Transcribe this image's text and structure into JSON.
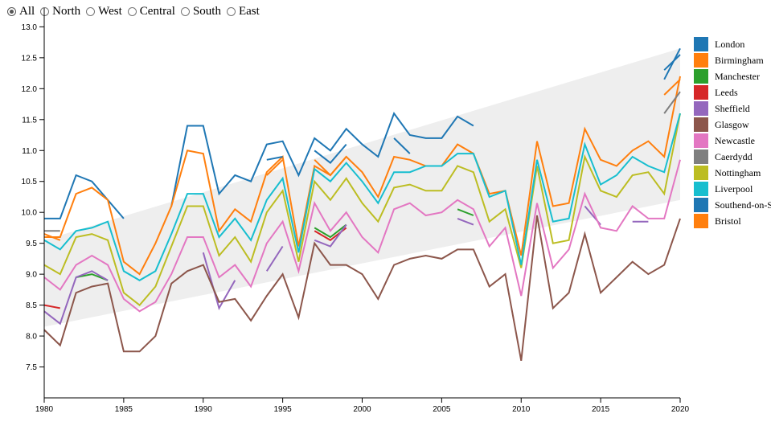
{
  "filters": {
    "options": [
      "All",
      "North",
      "West",
      "Central",
      "South",
      "East"
    ],
    "selected": "All"
  },
  "chart_data": {
    "type": "line",
    "title": "",
    "xlabel": "",
    "ylabel": "",
    "xlim": [
      1980,
      2020
    ],
    "ylim": [
      7,
      13.2
    ],
    "x_ticks": [
      1980,
      1985,
      1990,
      1995,
      2000,
      2005,
      2010,
      2015,
      2020
    ],
    "y_ticks": [
      7.5,
      8.0,
      8.5,
      9.0,
      9.5,
      10.0,
      10.5,
      11.0,
      11.5,
      12.0,
      12.5,
      13.0
    ],
    "y_tick_labels": [
      "7.5",
      "8.0",
      "8.5",
      "9.0",
      "9.5",
      "10.0",
      "10.5",
      "11.0",
      "11.5",
      "12.0",
      "12.5",
      "13.0"
    ],
    "legend_position": "right",
    "band": {
      "upper": [
        [
          1980,
          9.55
        ],
        [
          2020,
          12.65
        ]
      ],
      "lower": [
        [
          1980,
          8.15
        ],
        [
          2020,
          10.2
        ]
      ],
      "color": "#eeeeee"
    },
    "x": [
      1980,
      1981,
      1982,
      1983,
      1984,
      1985,
      1986,
      1987,
      1988,
      1989,
      1990,
      1991,
      1992,
      1993,
      1994,
      1995,
      1996,
      1997,
      1998,
      1999,
      2000,
      2001,
      2002,
      2003,
      2004,
      2005,
      2006,
      2007,
      2008,
      2009,
      2010,
      2011,
      2012,
      2013,
      2014,
      2015,
      2016,
      2017,
      2018,
      2019,
      2020
    ],
    "series": [
      {
        "name": "London",
        "color": "#1f77b4",
        "values": [
          9.9,
          9.9,
          10.6,
          10.5,
          10.2,
          9.9,
          null,
          null,
          10.1,
          11.4,
          11.4,
          10.3,
          10.6,
          10.5,
          11.1,
          11.15,
          10.6,
          11.2,
          11.0,
          11.35,
          11.1,
          10.9,
          11.6,
          11.25,
          11.2,
          11.2,
          11.55,
          11.4,
          null,
          null,
          null,
          null,
          null,
          null,
          11.95,
          null,
          null,
          null,
          null,
          12.15,
          12.65
        ]
      },
      {
        "name": "Birmingham",
        "color": "#ff7f0e",
        "values": [
          9.6,
          9.6,
          10.3,
          10.4,
          10.2,
          9.2,
          9.0,
          9.5,
          10.1,
          11.0,
          10.95,
          9.7,
          10.05,
          9.85,
          10.65,
          10.9,
          9.45,
          10.75,
          10.6,
          10.9,
          10.65,
          10.25,
          10.9,
          10.85,
          10.75,
          10.75,
          11.1,
          10.95,
          10.3,
          10.35,
          9.3,
          11.15,
          10.1,
          10.15,
          11.35,
          10.85,
          10.75,
          11.0,
          11.15,
          10.9,
          12.2
        ]
      },
      {
        "name": "Manchester",
        "color": "#2ca02c",
        "values": [
          null,
          null,
          8.95,
          9.0,
          8.9,
          null,
          null,
          null,
          null,
          null,
          null,
          null,
          null,
          null,
          null,
          9.5,
          null,
          9.75,
          9.6,
          9.8,
          null,
          null,
          null,
          null,
          null,
          null,
          10.05,
          9.95,
          null,
          null,
          null,
          null,
          null,
          null,
          null,
          null,
          null,
          null,
          null,
          null,
          null
        ]
      },
      {
        "name": "Leeds",
        "color": "#d62728",
        "values": [
          8.5,
          8.45,
          null,
          null,
          null,
          null,
          null,
          null,
          null,
          null,
          null,
          null,
          null,
          null,
          null,
          9.6,
          null,
          9.7,
          9.55,
          9.75,
          null,
          null,
          10.75,
          null,
          null,
          null,
          null,
          null,
          null,
          null,
          null,
          null,
          null,
          null,
          null,
          null,
          null,
          null,
          null,
          null,
          null
        ]
      },
      {
        "name": "Sheffield",
        "color": "#9467bd",
        "values": [
          8.4,
          8.2,
          8.95,
          9.05,
          8.9,
          null,
          7.7,
          null,
          null,
          null,
          9.35,
          8.45,
          8.9,
          null,
          9.05,
          9.45,
          null,
          9.55,
          9.45,
          9.8,
          null,
          null,
          null,
          null,
          null,
          null,
          9.9,
          9.8,
          null,
          null,
          null,
          null,
          null,
          null,
          10.1,
          9.8,
          null,
          9.85,
          9.85,
          null,
          10.7
        ]
      },
      {
        "name": "Glasgow",
        "color": "#8c564b",
        "values": [
          8.1,
          7.85,
          8.7,
          8.8,
          8.85,
          7.75,
          7.75,
          8.0,
          8.85,
          9.05,
          9.15,
          8.55,
          8.6,
          8.25,
          8.65,
          9.0,
          8.3,
          9.5,
          9.15,
          9.15,
          9.0,
          8.6,
          9.15,
          9.25,
          9.3,
          9.25,
          9.4,
          9.4,
          8.8,
          9.0,
          7.6,
          9.95,
          8.45,
          8.7,
          9.65,
          8.7,
          8.95,
          9.2,
          9.0,
          9.15,
          9.9
        ]
      },
      {
        "name": "Newcastle",
        "color": "#e377c2",
        "values": [
          8.95,
          8.75,
          9.15,
          9.3,
          9.15,
          8.6,
          8.4,
          8.55,
          9.0,
          9.6,
          9.6,
          8.95,
          9.15,
          8.8,
          9.5,
          9.85,
          9.05,
          10.15,
          9.7,
          10.0,
          9.6,
          9.35,
          10.05,
          10.15,
          9.95,
          10.0,
          10.2,
          10.05,
          9.45,
          9.75,
          8.65,
          10.15,
          9.1,
          9.4,
          10.3,
          9.75,
          9.7,
          10.1,
          9.9,
          9.9,
          10.85
        ]
      },
      {
        "name": "Caerdydd",
        "color": "#7f7f7f",
        "values": [
          9.7,
          9.7,
          null,
          null,
          null,
          null,
          null,
          null,
          null,
          null,
          null,
          null,
          null,
          null,
          null,
          null,
          null,
          null,
          null,
          null,
          null,
          null,
          10.8,
          null,
          null,
          null,
          11.05,
          null,
          null,
          null,
          null,
          null,
          null,
          null,
          null,
          null,
          null,
          null,
          null,
          11.6,
          11.95
        ]
      },
      {
        "name": "Nottingham",
        "color": "#bcbd22",
        "values": [
          9.15,
          9.0,
          9.6,
          9.65,
          9.55,
          8.7,
          8.5,
          8.8,
          9.45,
          10.1,
          10.1,
          9.3,
          9.6,
          9.2,
          10.0,
          10.35,
          9.2,
          10.5,
          10.2,
          10.55,
          10.15,
          9.85,
          10.4,
          10.45,
          10.35,
          10.35,
          10.75,
          10.65,
          9.85,
          10.05,
          9.1,
          10.75,
          9.5,
          9.55,
          10.9,
          10.35,
          10.25,
          10.6,
          10.65,
          10.3,
          11.6
        ]
      },
      {
        "name": "Liverpool",
        "color": "#17becf",
        "values": [
          9.55,
          9.4,
          9.7,
          9.75,
          9.85,
          9.05,
          8.9,
          9.05,
          9.65,
          10.3,
          10.3,
          9.6,
          9.9,
          9.55,
          10.2,
          10.55,
          9.35,
          10.7,
          10.5,
          10.8,
          10.5,
          10.15,
          10.65,
          10.65,
          10.75,
          10.75,
          10.95,
          10.95,
          10.25,
          10.35,
          9.15,
          10.85,
          9.85,
          9.9,
          11.1,
          10.45,
          10.6,
          10.9,
          10.75,
          10.65,
          11.6
        ]
      },
      {
        "name": "Southend-on-Sea",
        "color": "#1f77b4",
        "values": [
          null,
          null,
          null,
          null,
          null,
          null,
          null,
          null,
          null,
          null,
          null,
          null,
          null,
          null,
          10.85,
          10.9,
          null,
          11.0,
          10.8,
          11.1,
          null,
          null,
          11.2,
          10.95,
          null,
          null,
          11.3,
          null,
          null,
          null,
          null,
          null,
          null,
          null,
          11.85,
          null,
          null,
          null,
          null,
          12.3,
          12.55
        ]
      },
      {
        "name": "Bristol",
        "color": "#ff7f0e",
        "values": [
          9.65,
          9.55,
          null,
          null,
          null,
          null,
          null,
          null,
          null,
          null,
          null,
          null,
          null,
          null,
          10.6,
          10.85,
          null,
          10.85,
          10.6,
          10.9,
          null,
          null,
          10.85,
          null,
          null,
          null,
          11.0,
          null,
          null,
          null,
          null,
          null,
          null,
          null,
          null,
          null,
          null,
          null,
          null,
          11.9,
          12.15
        ]
      }
    ]
  }
}
